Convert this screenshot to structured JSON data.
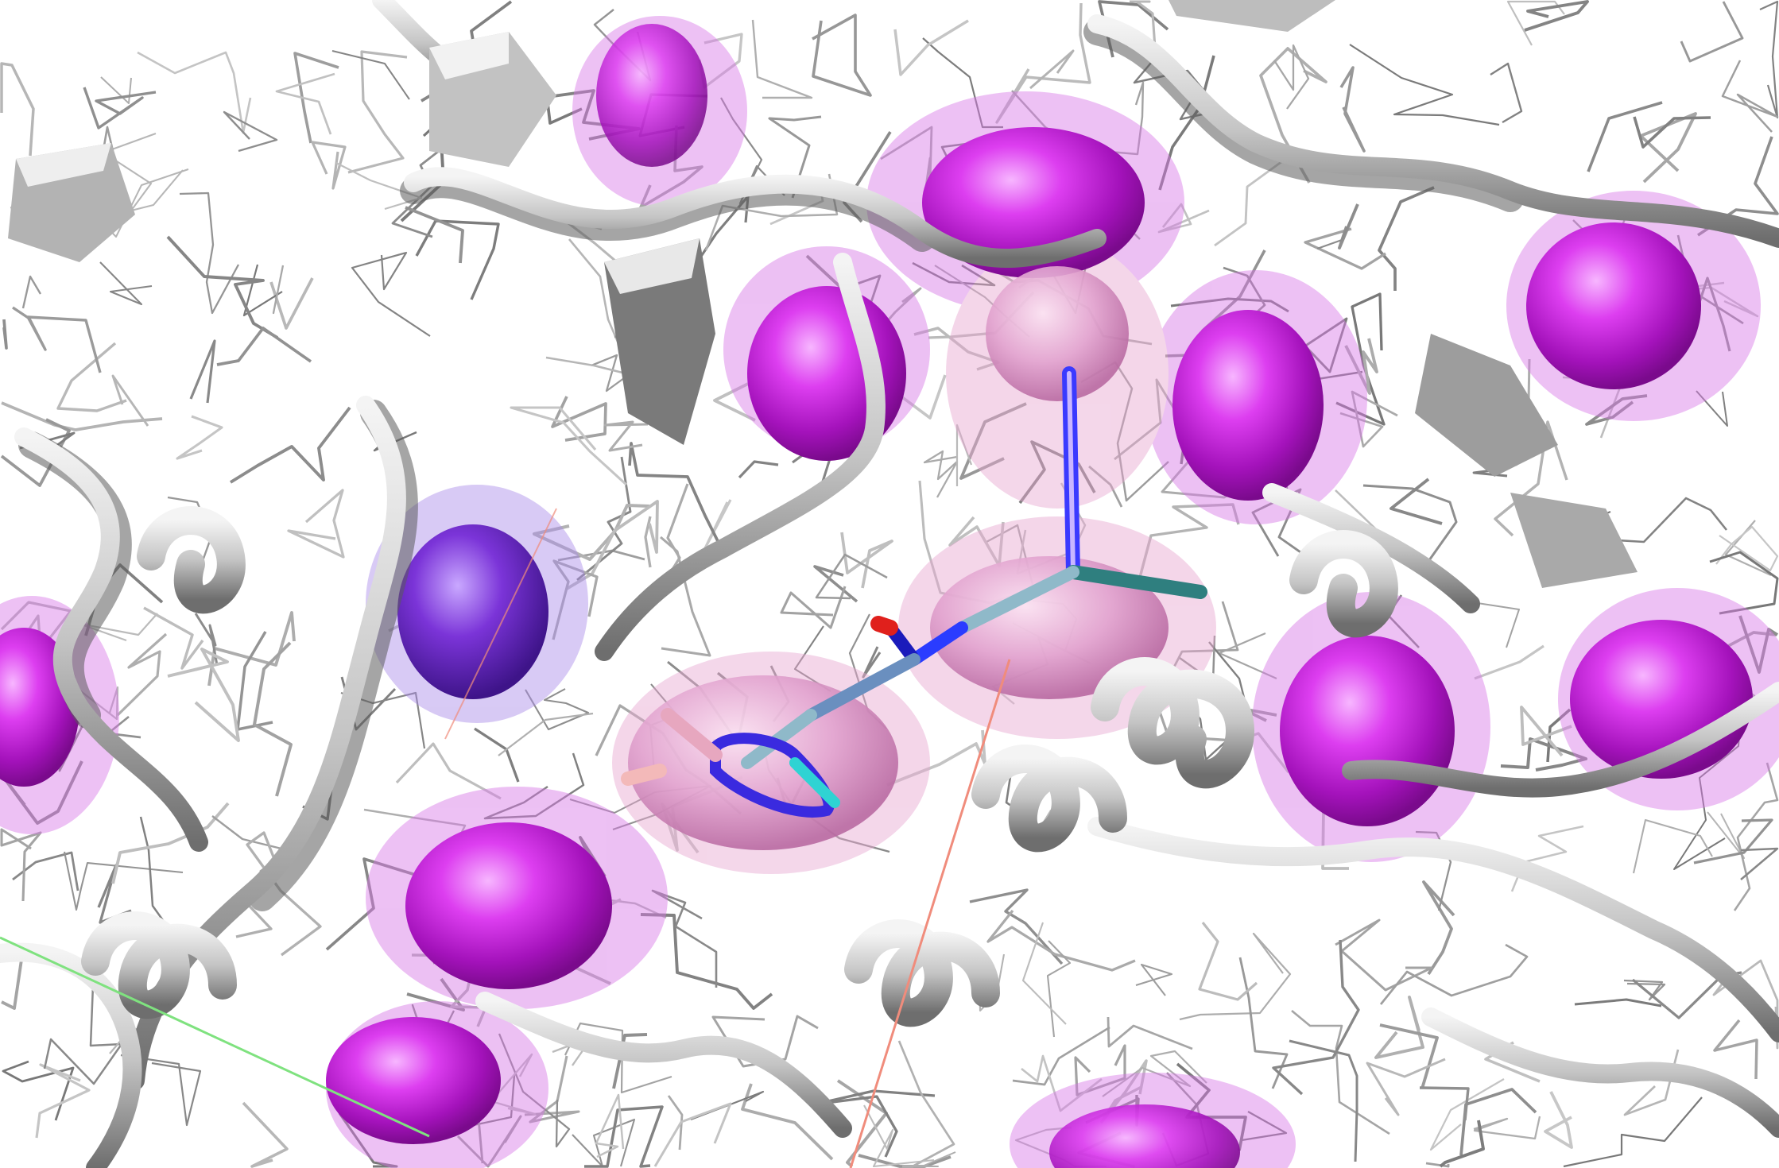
{
  "scene": {
    "subject": "protein-ligand-binding-site",
    "colors": {
      "background": "#ffffff",
      "ribbon": "#c9c9c9",
      "ribbon_shadow": "#6f6f6f",
      "sidechain": "#8f8f8f",
      "surface_magenta": "#c21fd6",
      "surface_violet": "#6a2bd0",
      "surface_pink": "#d98fc0",
      "ligand_carbon": "#8fb9c9",
      "ligand_nitrogen": "#2a3cff",
      "ligand_oxygen": "#e0201c",
      "ligand_teal": "#2f7f7f",
      "contact_line_red": "#f08c7c",
      "contact_line_green": "#7fe27f"
    }
  }
}
